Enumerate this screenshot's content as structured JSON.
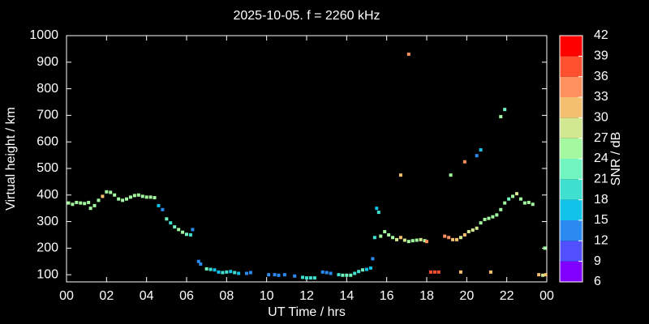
{
  "chart_data": {
    "type": "scatter",
    "title": "2025-10-05. f = 2260 kHz",
    "x_label": "UT Time / hrs",
    "y_label": "Virtual height / km",
    "xlim": [
      0,
      24
    ],
    "xticks": [
      {
        "value": 0,
        "label": "00"
      },
      {
        "value": 2,
        "label": "02"
      },
      {
        "value": 4,
        "label": "04"
      },
      {
        "value": 6,
        "label": "06"
      },
      {
        "value": 8,
        "label": "08"
      },
      10,
      12,
      14,
      16,
      18,
      20,
      22,
      {
        "value": 24,
        "label": "00"
      }
    ],
    "ylim": [
      73,
      1000
    ],
    "yticks": [
      100,
      200,
      300,
      400,
      500,
      600,
      700,
      800,
      900,
      1000
    ],
    "x": [
      0.1,
      0.3,
      0.5,
      0.7,
      0.9,
      1.1,
      1.2,
      1.4,
      1.6,
      1.8,
      2.0,
      2.2,
      2.4,
      2.6,
      2.8,
      3.0,
      3.2,
      3.4,
      3.6,
      3.8,
      4.0,
      4.2,
      4.4,
      4.6,
      4.8,
      5.0,
      5.2,
      5.4,
      5.6,
      5.8,
      6.0,
      6.2,
      6.3,
      6.6,
      6.7,
      7.0,
      7.2,
      7.4,
      7.6,
      7.8,
      8.0,
      8.2,
      8.4,
      8.6,
      9.0,
      9.2,
      10.1,
      10.4,
      10.6,
      10.9,
      11.4,
      11.8,
      12.0,
      12.2,
      12.4,
      12.8,
      13.0,
      13.2,
      13.6,
      13.8,
      14.0,
      14.2,
      14.4,
      14.6,
      14.8,
      15.0,
      15.2,
      15.3,
      15.4,
      15.5,
      15.6,
      15.7,
      15.9,
      16.1,
      16.3,
      16.5,
      16.7,
      16.9,
      17.1,
      17.3,
      17.5,
      17.7,
      17.9,
      18.0,
      16.7,
      17.1,
      18.2,
      18.4,
      18.6,
      18.9,
      19.1,
      19.3,
      19.5,
      19.7,
      19.9,
      20.1,
      20.3,
      20.5,
      20.7,
      20.9,
      21.1,
      21.3,
      21.5,
      21.7,
      21.9,
      22.1,
      22.3,
      22.5,
      22.7,
      22.9,
      23.1,
      23.3,
      23.6,
      23.8,
      23.9,
      19.2,
      19.9,
      20.5,
      20.7,
      21.7,
      21.9,
      19.7,
      21.2,
      23.95
    ],
    "values": [
      370,
      365,
      372,
      370,
      368,
      372,
      350,
      360,
      380,
      395,
      412,
      410,
      400,
      385,
      380,
      385,
      392,
      398,
      400,
      395,
      392,
      392,
      390,
      360,
      345,
      310,
      295,
      280,
      270,
      260,
      252,
      250,
      270,
      150,
      140,
      122,
      120,
      118,
      110,
      108,
      110,
      112,
      108,
      105,
      105,
      108,
      100,
      100,
      98,
      100,
      95,
      90,
      88,
      88,
      88,
      110,
      108,
      105,
      100,
      98,
      98,
      98,
      105,
      112,
      118,
      120,
      125,
      160,
      240,
      350,
      335,
      245,
      262,
      250,
      240,
      232,
      240,
      230,
      225,
      228,
      230,
      232,
      228,
      225,
      475,
      930,
      110,
      110,
      110,
      245,
      240,
      232,
      232,
      240,
      250,
      262,
      268,
      275,
      295,
      308,
      312,
      318,
      325,
      345,
      370,
      385,
      395,
      405,
      385,
      370,
      372,
      365,
      100,
      98,
      200,
      475,
      525,
      548,
      570,
      695,
      722,
      110,
      110,
      100
    ],
    "snr": [
      25,
      26,
      25,
      25,
      26,
      25,
      24,
      25,
      25,
      31,
      26,
      25,
      26,
      25,
      26,
      25,
      26,
      25,
      24,
      26,
      25,
      26,
      25,
      16,
      14,
      21,
      20,
      23,
      24,
      25,
      22,
      20,
      14,
      14,
      13,
      21,
      19,
      16,
      17,
      18,
      19,
      16,
      18,
      17,
      14,
      13,
      13,
      12,
      14,
      13,
      14,
      18,
      19,
      19,
      20,
      13,
      14,
      14,
      20,
      21,
      22,
      22,
      20,
      19,
      21,
      17,
      16,
      14,
      20,
      15,
      20,
      25,
      24,
      25,
      26,
      28,
      31,
      27,
      26,
      25,
      26,
      27,
      25,
      34,
      31,
      33,
      37,
      38,
      37,
      35,
      34,
      32,
      31,
      28,
      30,
      29,
      28,
      27,
      26,
      25,
      25,
      26,
      25,
      24,
      25,
      23,
      26,
      28,
      25,
      26,
      25,
      26,
      30,
      29,
      25,
      24,
      33,
      14,
      16,
      25,
      21,
      31,
      32,
      32
    ],
    "colorbar": {
      "label": "SNR / dB",
      "lim": [
        6,
        42
      ],
      "ticks": [
        6,
        9,
        12,
        15,
        18,
        21,
        24,
        27,
        30,
        33,
        36,
        39,
        42
      ],
      "colors": [
        "#8000ff",
        "#5050ff",
        "#2a8af0",
        "#12c2e8",
        "#40e0d0",
        "#70f4c0",
        "#a4f8a0",
        "#d2e890",
        "#f4c070",
        "#ff9060",
        "#ff5030",
        "#ff0000"
      ]
    }
  }
}
